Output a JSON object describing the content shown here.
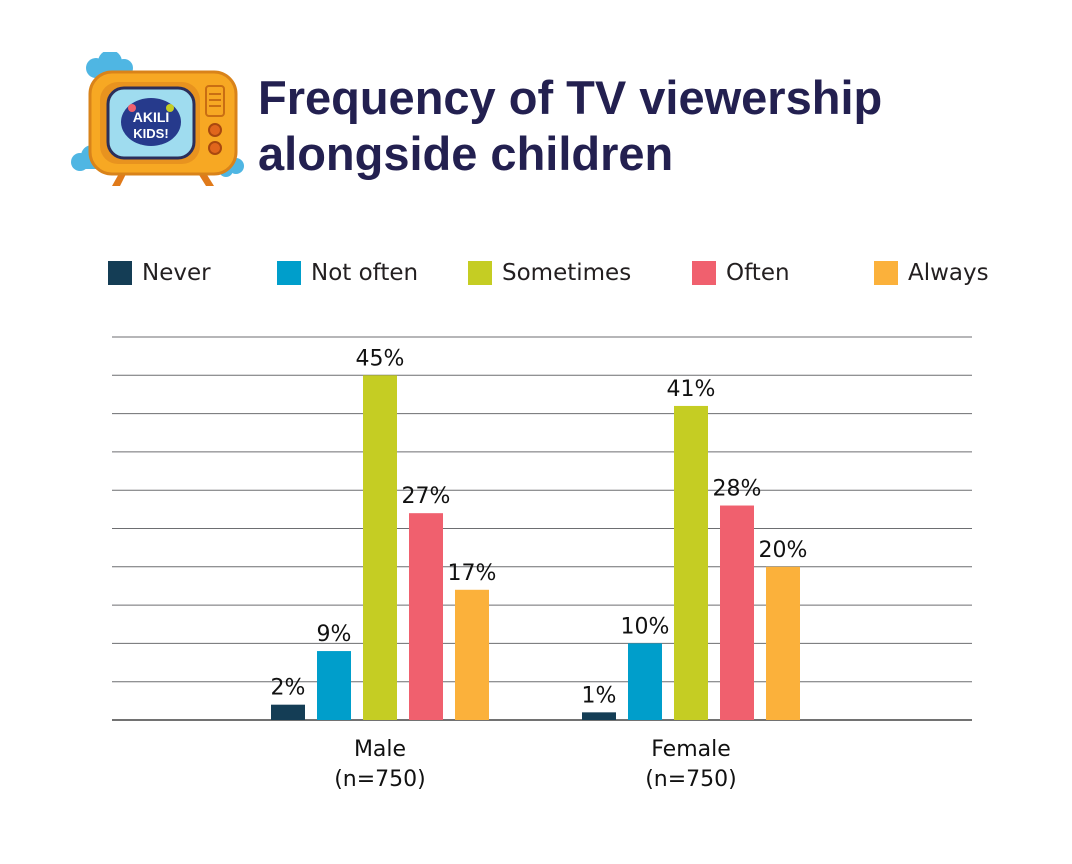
{
  "title_line1": "Frequency of TV viewership",
  "title_line2": "alongside children",
  "logo": {
    "text": "AKILI KIDS!"
  },
  "chart_data": {
    "type": "bar",
    "title": "Frequency of TV viewership alongside children",
    "categories": [
      "Male",
      "Female"
    ],
    "category_sublabels": [
      "(n=750)",
      "(n=750)"
    ],
    "series": [
      {
        "name": "Never",
        "color": "#143d55",
        "values": [
          2,
          1
        ],
        "labels": [
          "2%",
          "1%"
        ]
      },
      {
        "name": "Not often",
        "color": "#009ecb",
        "values": [
          9,
          10
        ],
        "labels": [
          "9%",
          "10%"
        ]
      },
      {
        "name": "Sometimes",
        "color": "#c5cd23",
        "values": [
          45,
          41
        ],
        "labels": [
          "45%",
          "41%"
        ]
      },
      {
        "name": "Often",
        "color": "#f0606e",
        "values": [
          27,
          28
        ],
        "labels": [
          "27%",
          "28%"
        ]
      },
      {
        "name": "Always",
        "color": "#fbb13b",
        "values": [
          17,
          20
        ],
        "labels": [
          "17%",
          "20%"
        ]
      }
    ],
    "ylim": [
      0,
      50
    ],
    "grid": true,
    "legend": "top",
    "xlabel": "",
    "ylabel": ""
  }
}
